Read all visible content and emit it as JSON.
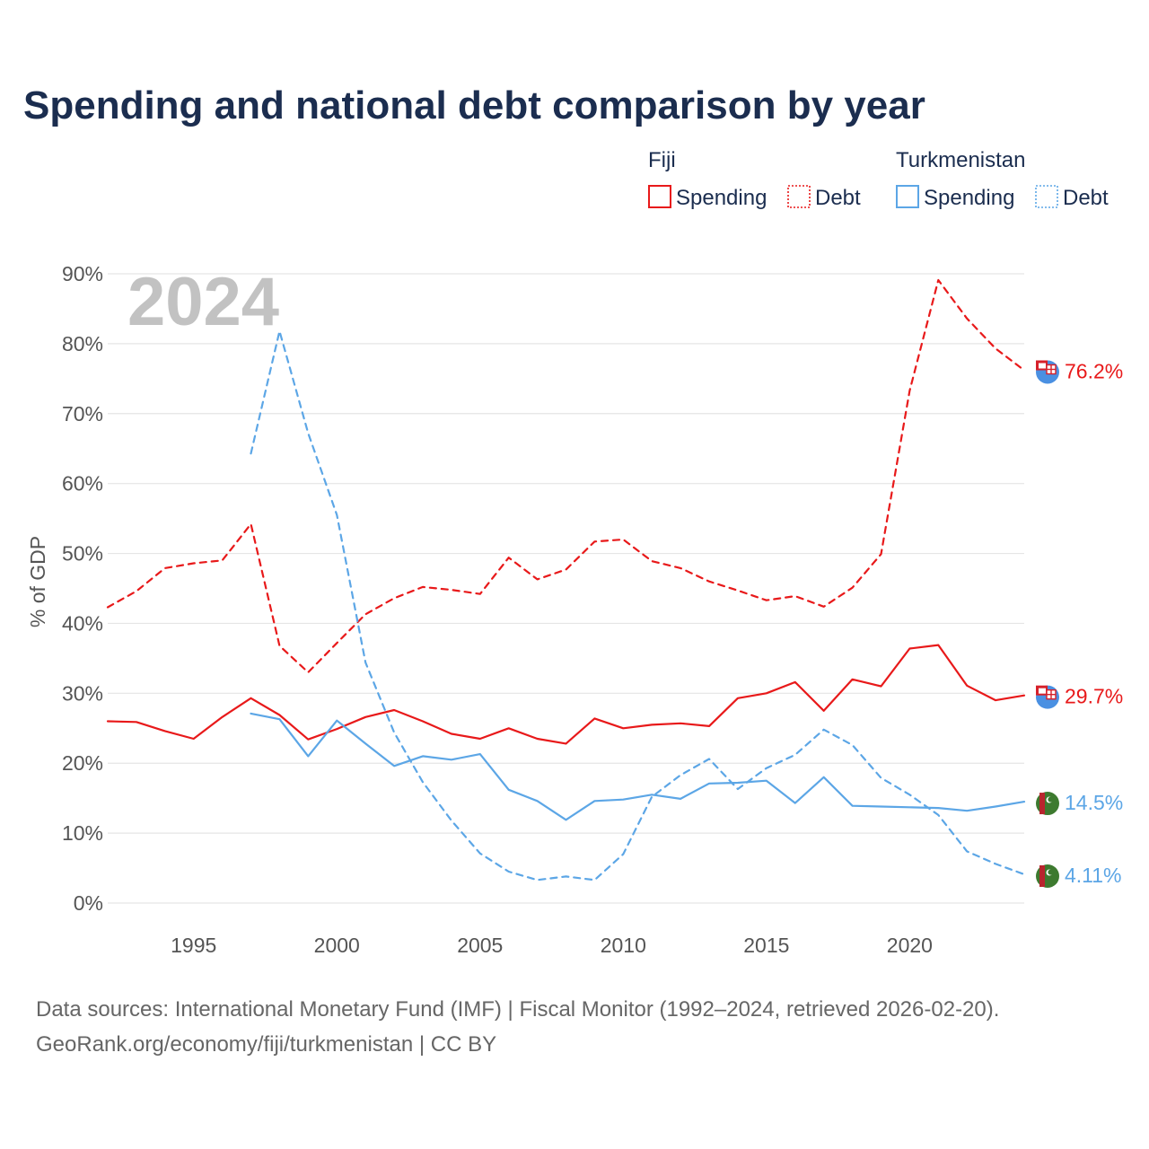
{
  "chart_data": {
    "type": "line",
    "title": "Spending and national debt comparison by year",
    "ylabel": "% of GDP",
    "xlabel": "",
    "year_label": "2024",
    "xlim": [
      1992,
      2024
    ],
    "ylim": [
      0,
      90
    ],
    "x_ticks": [
      1995,
      2000,
      2005,
      2010,
      2015,
      2020
    ],
    "y_ticks": [
      0,
      10,
      20,
      30,
      40,
      50,
      60,
      70,
      80,
      90
    ],
    "y_tick_labels": [
      "0%",
      "10%",
      "20%",
      "30%",
      "40%",
      "50%",
      "60%",
      "70%",
      "80%",
      "90%"
    ],
    "legend": {
      "groups": [
        {
          "country": "Fiji",
          "color": "#e8191a",
          "items": [
            {
              "label": "Spending",
              "style": "solid"
            },
            {
              "label": "Debt",
              "style": "dotted"
            }
          ]
        },
        {
          "country": "Turkmenistan",
          "color": "#5ca6e6",
          "items": [
            {
              "label": "Spending",
              "style": "solid"
            },
            {
              "label": "Debt",
              "style": "dotted"
            }
          ]
        }
      ]
    },
    "series": [
      {
        "name": "Fiji Debt",
        "country": "Fiji",
        "color": "#e8191a",
        "dashed": true,
        "end_label": "76.2%",
        "flag": "fiji",
        "x": [
          1992,
          1993,
          1994,
          1995,
          1996,
          1997,
          1998,
          1999,
          2000,
          2001,
          2002,
          2003,
          2004,
          2005,
          2006,
          2007,
          2008,
          2009,
          2010,
          2011,
          2012,
          2013,
          2014,
          2015,
          2016,
          2017,
          2018,
          2019,
          2020,
          2021,
          2022,
          2023,
          2024
        ],
        "values": [
          42.3,
          44.6,
          47.9,
          48.6,
          49.0,
          54.2,
          36.8,
          33.0,
          37.2,
          41.3,
          43.6,
          45.2,
          44.8,
          44.2,
          49.4,
          46.3,
          47.7,
          51.7,
          52.0,
          48.9,
          47.9,
          46.0,
          44.7,
          43.3,
          43.9,
          42.4,
          45.1,
          49.9,
          73.3,
          89.1,
          83.6,
          79.3,
          76.2
        ]
      },
      {
        "name": "Fiji Spending",
        "country": "Fiji",
        "color": "#e8191a",
        "dashed": false,
        "end_label": "29.7%",
        "flag": "fiji",
        "x": [
          1992,
          1993,
          1994,
          1995,
          1996,
          1997,
          1998,
          1999,
          2000,
          2001,
          2002,
          2003,
          2004,
          2005,
          2006,
          2007,
          2008,
          2009,
          2010,
          2011,
          2012,
          2013,
          2014,
          2015,
          2016,
          2017,
          2018,
          2019,
          2020,
          2021,
          2022,
          2023,
          2024
        ],
        "values": [
          26.0,
          25.9,
          24.6,
          23.5,
          26.6,
          29.3,
          26.9,
          23.4,
          24.9,
          26.6,
          27.6,
          26.0,
          24.2,
          23.5,
          25.0,
          23.5,
          22.8,
          26.4,
          25.0,
          25.5,
          25.7,
          25.3,
          29.3,
          30.0,
          31.6,
          27.5,
          32.0,
          31.0,
          36.4,
          36.9,
          31.1,
          29.0,
          29.7
        ]
      },
      {
        "name": "Turkmenistan Spending",
        "country": "Turkmenistan",
        "color": "#5ca6e6",
        "dashed": false,
        "end_label": "14.5%",
        "flag": "turkmenistan",
        "x": [
          1997,
          1998,
          1999,
          2000,
          2001,
          2002,
          2003,
          2004,
          2005,
          2006,
          2007,
          2008,
          2009,
          2010,
          2011,
          2012,
          2013,
          2014,
          2015,
          2016,
          2017,
          2018,
          2019,
          2020,
          2021,
          2022,
          2023,
          2024
        ],
        "values": [
          27.1,
          26.3,
          21.0,
          26.1,
          22.8,
          19.6,
          21.0,
          20.5,
          21.3,
          16.2,
          14.6,
          11.9,
          14.6,
          14.8,
          15.5,
          14.9,
          17.1,
          17.2,
          17.5,
          14.3,
          18.0,
          13.9,
          13.8,
          13.7,
          13.6,
          13.2,
          13.8,
          14.5
        ]
      },
      {
        "name": "Turkmenistan Debt",
        "country": "Turkmenistan",
        "color": "#5ca6e6",
        "dashed": true,
        "end_label": "4.11%",
        "flag": "turkmenistan",
        "x": [
          1997,
          1998,
          1999,
          2000,
          2001,
          2002,
          2003,
          2004,
          2005,
          2006,
          2007,
          2008,
          2009,
          2010,
          2011,
          2012,
          2013,
          2014,
          2015,
          2016,
          2017,
          2018,
          2019,
          2020,
          2021,
          2022,
          2023,
          2024
        ],
        "values": [
          64.3,
          81.8,
          67.2,
          55.5,
          34.4,
          24.4,
          17.3,
          11.8,
          7.1,
          4.5,
          3.3,
          3.8,
          3.3,
          7.0,
          15.2,
          18.3,
          20.6,
          16.3,
          19.3,
          21.2,
          24.8,
          22.6,
          17.9,
          15.5,
          12.6,
          7.4,
          5.6,
          4.11
        ]
      }
    ],
    "footer": [
      "Data sources: International Monetary Fund (IMF) | Fiscal Monitor (1992–2024, retrieved 2026-02-20).",
      "GeoRank.org/economy/fiji/turkmenistan | CC BY"
    ]
  },
  "colors": {
    "title": "#1b2d4f",
    "axis_text": "#555555",
    "grid": "#e5e5e5",
    "year_watermark": "#c2c2c2",
    "footer_text": "#666666"
  }
}
